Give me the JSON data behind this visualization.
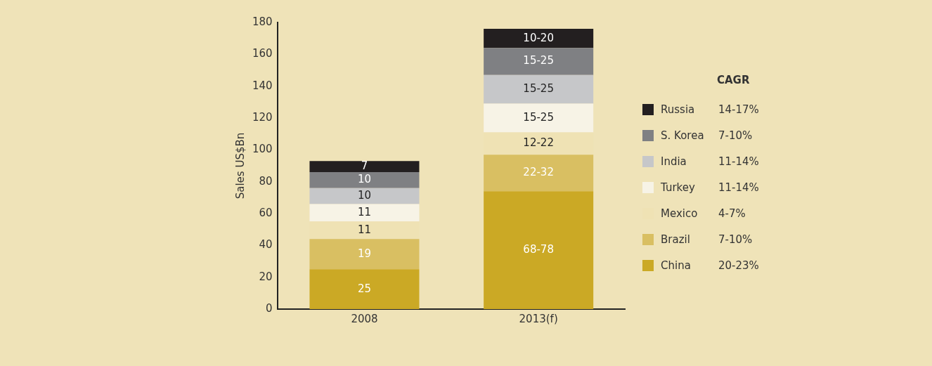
{
  "chart_data": {
    "type": "bar",
    "stacked": true,
    "ylabel": "Sales US$Bn",
    "categories": [
      "2008",
      "2013(f)"
    ],
    "ylim": [
      0,
      180
    ],
    "yticks": [
      0,
      20,
      40,
      60,
      80,
      100,
      120,
      140,
      160,
      180
    ],
    "grid": false,
    "legend": "right",
    "legend_title": "CAGR",
    "series": [
      {
        "name": "China",
        "color": "#cba925",
        "values": [
          25,
          74
        ],
        "value_labels": [
          "25",
          "68-78"
        ]
      },
      {
        "name": "Brazil",
        "color": "#d9bf62",
        "values": [
          19,
          23
        ],
        "value_labels": [
          "19",
          "22-32"
        ]
      },
      {
        "name": "Mexico",
        "color": "#efe2b4",
        "values": [
          11,
          14
        ],
        "value_labels": [
          "11",
          "12-22"
        ]
      },
      {
        "name": "Turkey",
        "color": "#f7f3e6",
        "values": [
          11,
          18
        ],
        "value_labels": [
          "11",
          "15-25"
        ]
      },
      {
        "name": "India",
        "color": "#c6c7c9",
        "values": [
          10,
          18
        ],
        "value_labels": [
          "10",
          "15-25"
        ]
      },
      {
        "name": "S. Korea",
        "color": "#7f8083",
        "values": [
          10,
          17
        ],
        "value_labels": [
          "10",
          "15-25"
        ]
      },
      {
        "name": "Russia",
        "color": "#231f20",
        "values": [
          7,
          12
        ],
        "value_labels": [
          "7",
          "10-20"
        ]
      }
    ],
    "annotations": [
      "20-23%",
      "7-10%",
      "4-7%",
      "11-14%",
      "11-14%",
      "7-10%",
      "14-17%"
    ]
  }
}
